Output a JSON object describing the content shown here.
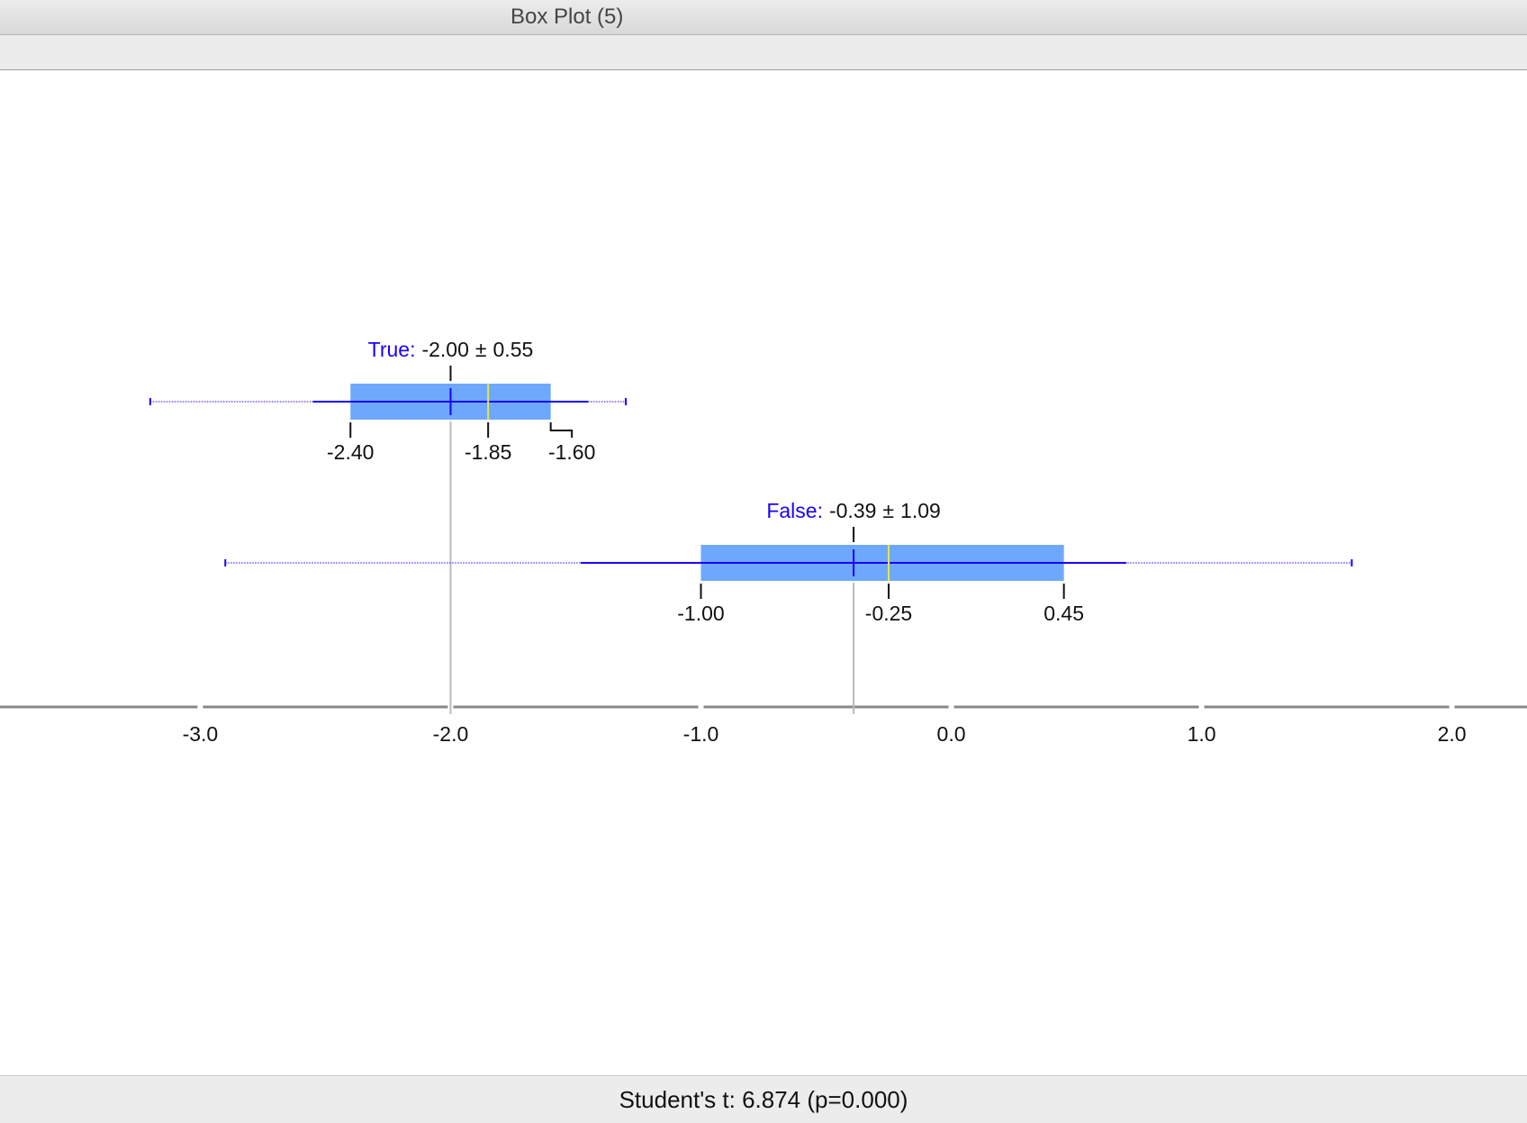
{
  "window_title": "Box Plot (5)",
  "footer": "Student's t: 6.874 (p=0.000)",
  "chart_data": {
    "type": "boxplot",
    "stat_separator": "±",
    "xlim": [
      -3.8,
      2.3
    ],
    "xticks": [
      {
        "value": -3,
        "label": "-3.0"
      },
      {
        "value": -2,
        "label": "-2.0"
      },
      {
        "value": -1,
        "label": "-1.0"
      },
      {
        "value": 0,
        "label": "0.0"
      },
      {
        "value": 1,
        "label": "1.0"
      },
      {
        "value": 2,
        "label": "2.0"
      }
    ],
    "box_color": "#6ea8fc",
    "line_color": "#1a00ff",
    "median_color": "#e6e64a",
    "series": [
      {
        "name": "True:",
        "min": -3.2,
        "q1": -2.4,
        "median": -1.85,
        "q3": -1.6,
        "max": -1.3,
        "mean": -2.0,
        "sd": 0.55,
        "value_labels": {
          "q1": "-2.40",
          "median": "-1.85",
          "q3": "-1.60",
          "mean": "-2.00",
          "sd": "0.55"
        }
      },
      {
        "name": "False:",
        "min": -2.9,
        "q1": -1.0,
        "median": -0.25,
        "q3": 0.45,
        "max": 1.6,
        "mean": -0.39,
        "sd": 1.09,
        "value_labels": {
          "q1": "-1.00",
          "median": "-0.25",
          "q3": "0.45",
          "mean": "-0.39",
          "sd": "1.09"
        }
      }
    ]
  }
}
